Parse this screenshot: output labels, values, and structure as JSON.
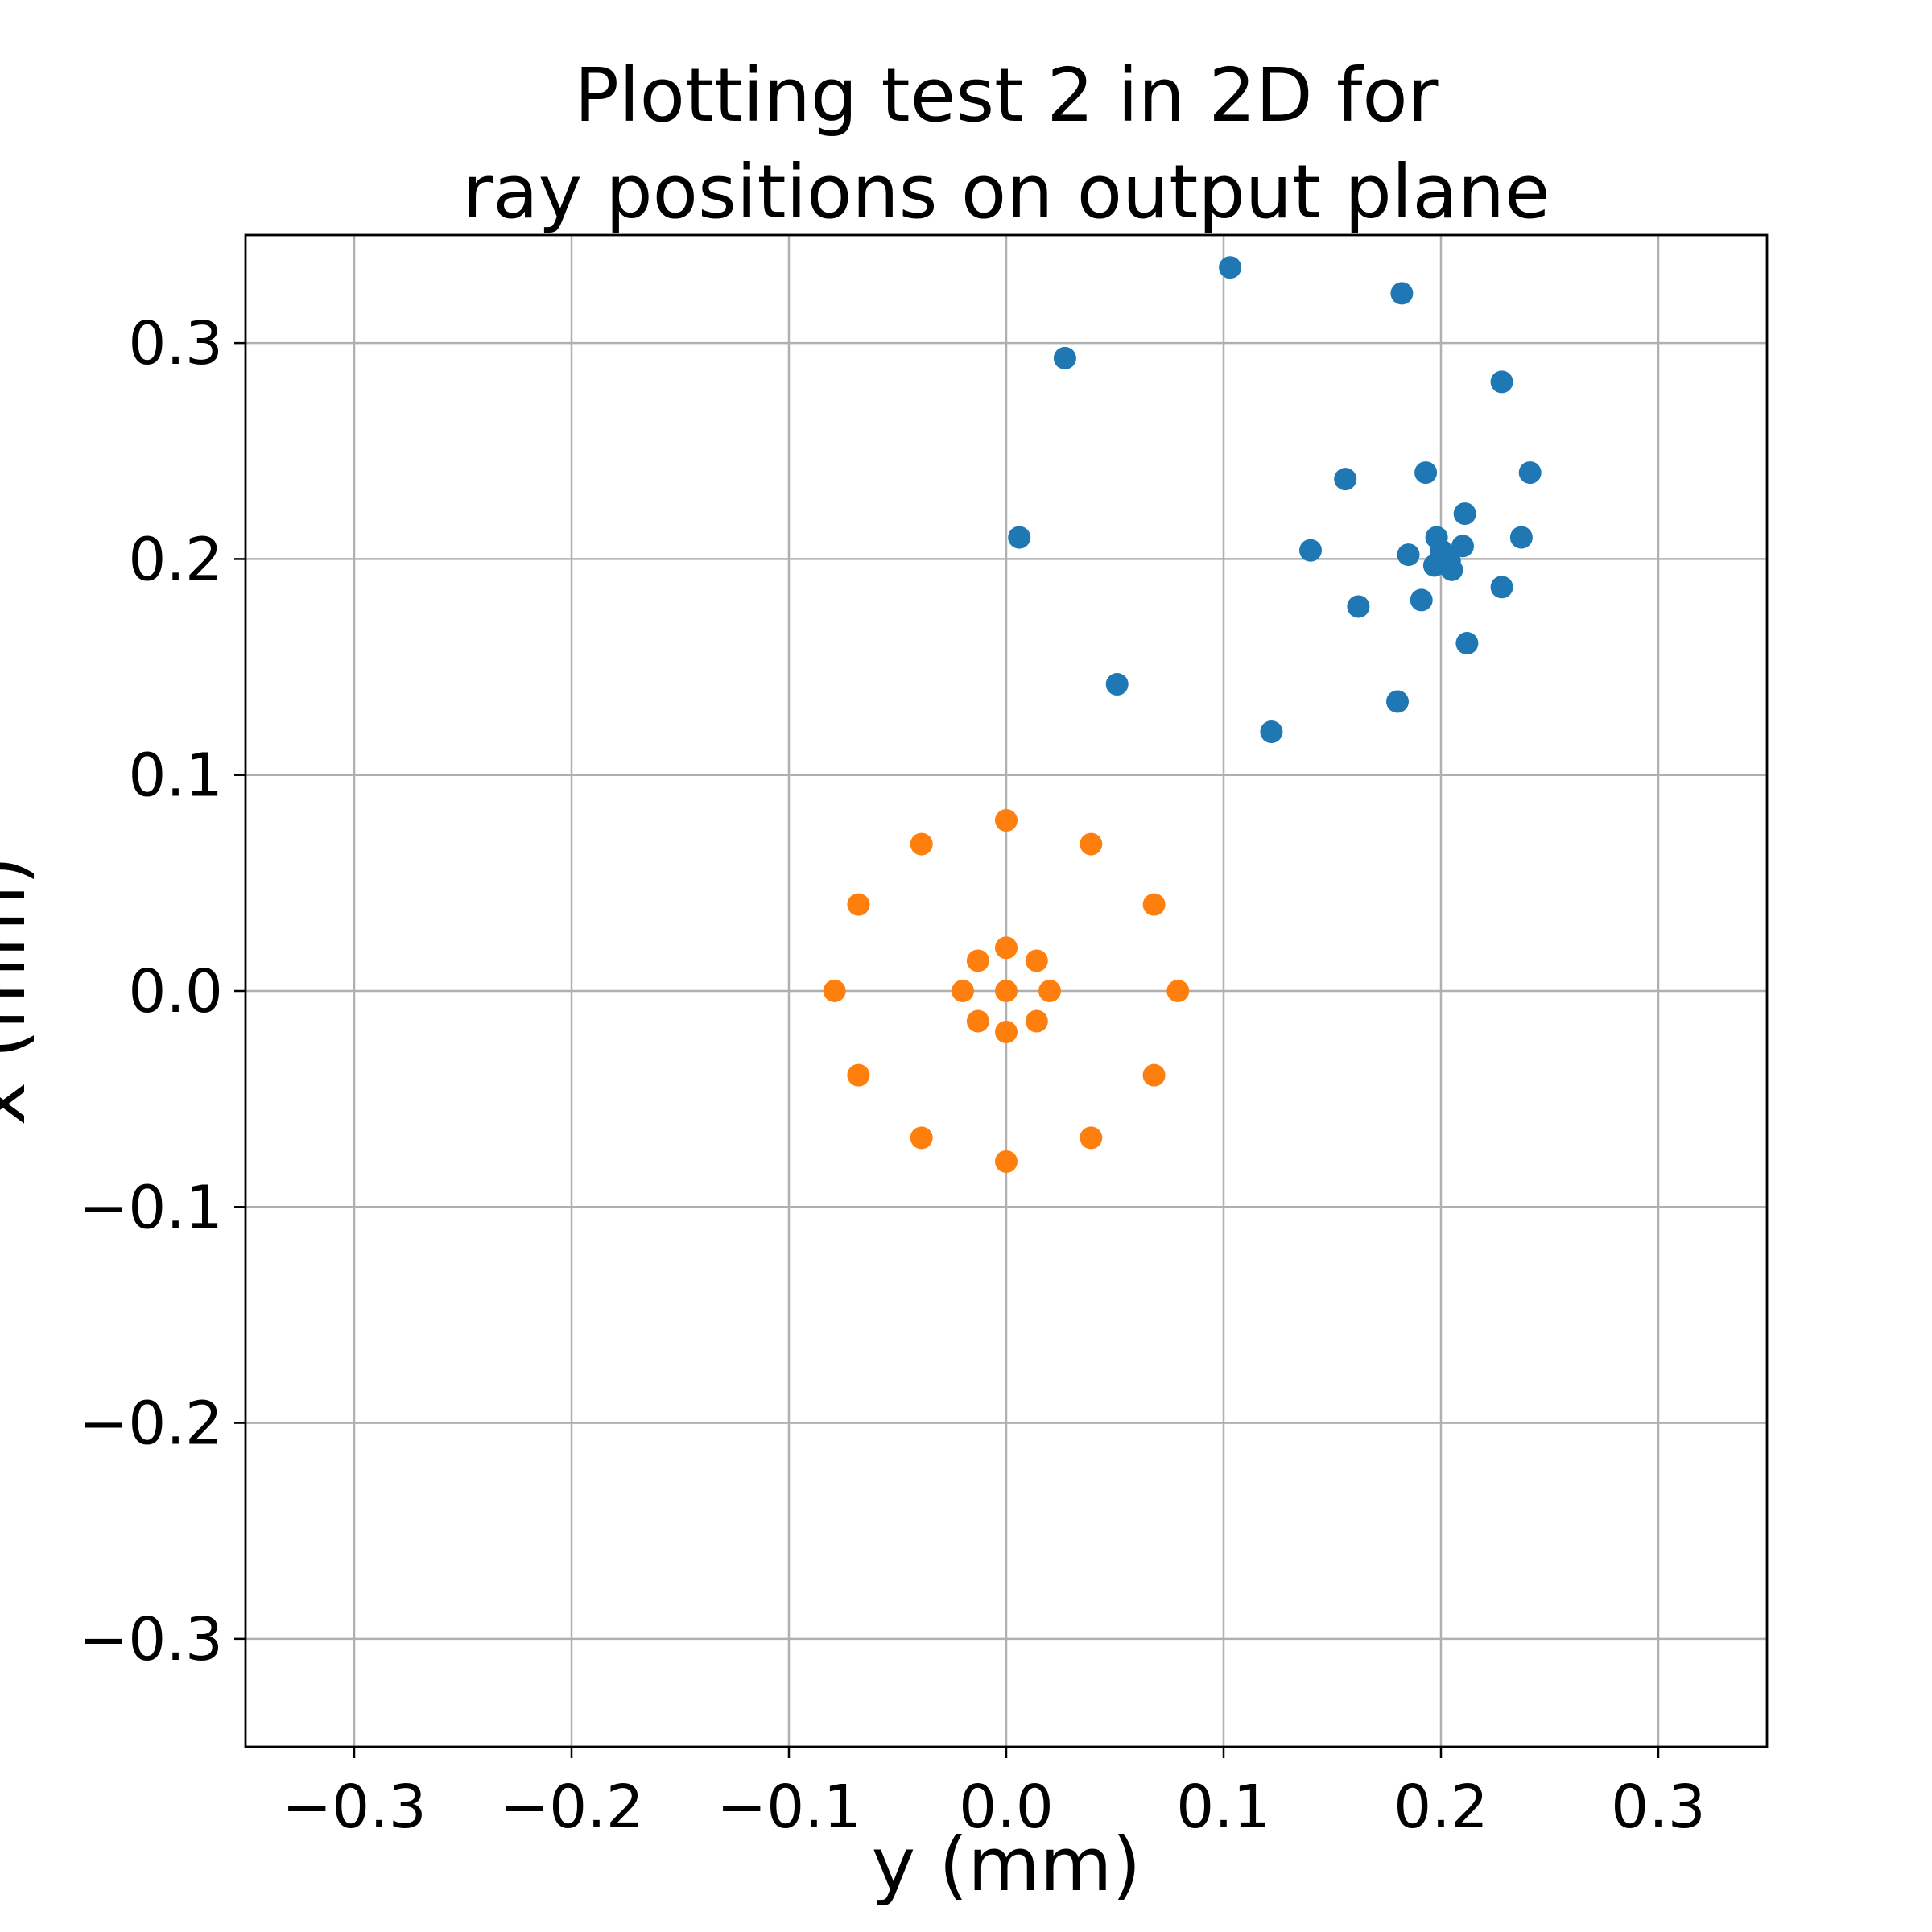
{
  "chart_data": {
    "type": "scatter",
    "title": "Plotting test 2 in 2D for\nray positions on output plane",
    "xlabel": "y (mm)",
    "ylabel": "x (mm)",
    "xlim": [
      -0.35,
      0.35
    ],
    "ylim": [
      -0.35,
      0.35
    ],
    "x_ticks": [
      -0.3,
      -0.2,
      -0.1,
      0.0,
      0.1,
      0.2,
      0.3
    ],
    "y_ticks": [
      -0.3,
      -0.2,
      -0.1,
      0.0,
      0.1,
      0.2,
      0.3
    ],
    "x_tick_labels": [
      "−0.3",
      "−0.2",
      "−0.1",
      "0.0",
      "0.1",
      "0.2",
      "0.3"
    ],
    "y_tick_labels": [
      "−0.3",
      "−0.2",
      "−0.1",
      "0.0",
      "0.1",
      "0.2",
      "0.3"
    ],
    "grid": true,
    "series": [
      {
        "color": "#1f77b4",
        "points": [
          [
            0.103,
            0.335
          ],
          [
            0.182,
            0.323
          ],
          [
            0.027,
            0.293
          ],
          [
            0.228,
            0.282
          ],
          [
            0.156,
            0.237
          ],
          [
            0.193,
            0.24
          ],
          [
            0.241,
            0.24
          ],
          [
            0.211,
            0.221
          ],
          [
            0.006,
            0.21
          ],
          [
            0.14,
            0.204
          ],
          [
            0.185,
            0.202
          ],
          [
            0.198,
            0.21
          ],
          [
            0.237,
            0.21
          ],
          [
            0.21,
            0.206
          ],
          [
            0.2,
            0.204
          ],
          [
            0.204,
            0.199
          ],
          [
            0.197,
            0.197
          ],
          [
            0.205,
            0.195
          ],
          [
            0.228,
            0.187
          ],
          [
            0.162,
            0.178
          ],
          [
            0.191,
            0.181
          ],
          [
            0.212,
            0.161
          ],
          [
            0.051,
            0.142
          ],
          [
            0.18,
            0.134
          ],
          [
            0.122,
            0.12
          ]
        ]
      },
      {
        "color": "#ff7f0e",
        "points": [
          [
            0.0,
            0.079
          ],
          [
            -0.039,
            0.068
          ],
          [
            0.039,
            0.068
          ],
          [
            -0.068,
            0.04
          ],
          [
            0.068,
            0.04
          ],
          [
            0.0,
            0.02
          ],
          [
            -0.013,
            0.014
          ],
          [
            0.014,
            0.014
          ],
          [
            -0.079,
            0.0
          ],
          [
            -0.02,
            0.0
          ],
          [
            0.0,
            0.0
          ],
          [
            0.02,
            0.0
          ],
          [
            0.079,
            0.0
          ],
          [
            -0.013,
            -0.014
          ],
          [
            0.014,
            -0.014
          ],
          [
            0.0,
            -0.019
          ],
          [
            -0.068,
            -0.039
          ],
          [
            0.068,
            -0.039
          ],
          [
            -0.039,
            -0.068
          ],
          [
            0.039,
            -0.068
          ],
          [
            0.0,
            -0.079
          ]
        ]
      }
    ]
  }
}
